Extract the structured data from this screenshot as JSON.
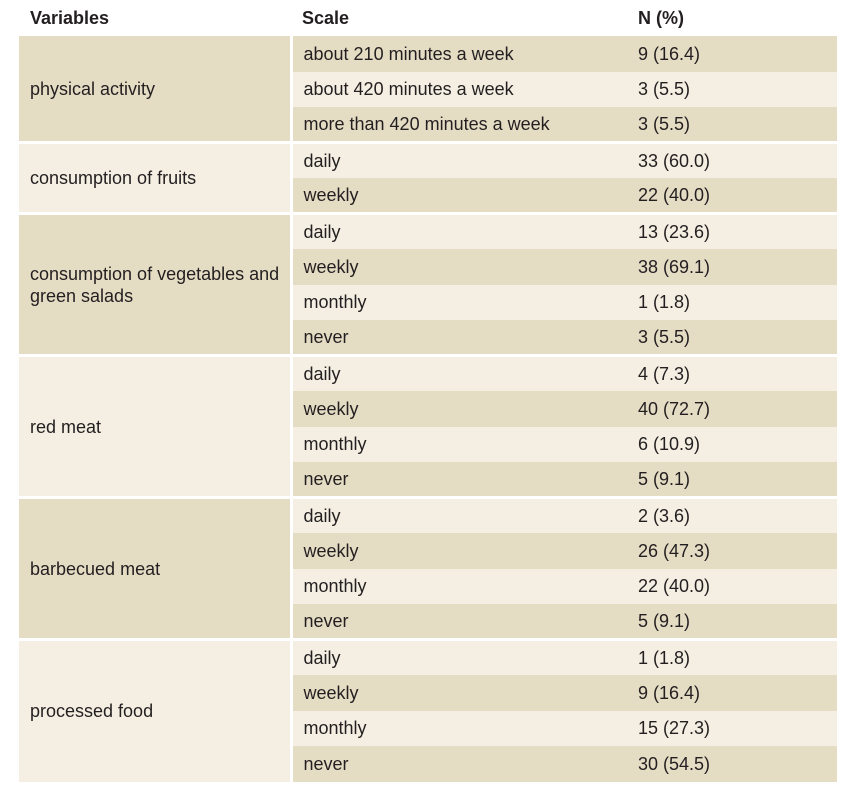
{
  "headers": {
    "variable": "Variables",
    "scale": "Scale",
    "n": "N (%)"
  },
  "groups": [
    {
      "variable": "physical activity",
      "rows": [
        {
          "scale": "about 210 minutes a week",
          "n": "9 (16.4)"
        },
        {
          "scale": "about 420 minutes a week",
          "n": "3 (5.5)"
        },
        {
          "scale": "more than 420 minutes a week",
          "n": "3 (5.5)"
        }
      ]
    },
    {
      "variable": "consumption of fruits",
      "rows": [
        {
          "scale": "daily",
          "n": "33 (60.0)"
        },
        {
          "scale": "weekly",
          "n": "22 (40.0)"
        }
      ]
    },
    {
      "variable": "consumption of vegetables and green salads",
      "rows": [
        {
          "scale": "daily",
          "n": "13 (23.6)"
        },
        {
          "scale": "weekly",
          "n": "38 (69.1)"
        },
        {
          "scale": "monthly",
          "n": "1 (1.8)"
        },
        {
          "scale": "never",
          "n": "3 (5.5)"
        }
      ]
    },
    {
      "variable": "red meat",
      "rows": [
        {
          "scale": "daily",
          "n": "4 (7.3)"
        },
        {
          "scale": "weekly",
          "n": "40 (72.7)"
        },
        {
          "scale": "monthly",
          "n": "6 (10.9)"
        },
        {
          "scale": "never",
          "n": "5 (9.1)"
        }
      ]
    },
    {
      "variable": "barbecued meat",
      "rows": [
        {
          "scale": "daily",
          "n": "2 (3.6)"
        },
        {
          "scale": "weekly",
          "n": "26 (47.3)"
        },
        {
          "scale": "monthly",
          "n": "22 (40.0)"
        },
        {
          "scale": "never",
          "n": "5 (9.1)"
        }
      ]
    },
    {
      "variable": "processed food",
      "rows": [
        {
          "scale": "daily",
          "n": "1 (1.8)"
        },
        {
          "scale": "weekly",
          "n": "9 (16.4)"
        },
        {
          "scale": "monthly",
          "n": "15 (27.3)"
        },
        {
          "scale": "never",
          "n": "30 (54.5)"
        }
      ]
    }
  ],
  "colors": {
    "dark_row": "#e5dcc4",
    "light_row": "#f4efe2",
    "text": "#231f20"
  }
}
